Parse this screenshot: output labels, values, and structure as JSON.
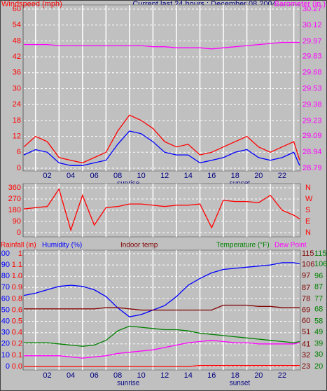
{
  "chart_data": [
    {
      "type": "line",
      "title": "Current last 24 hours : December 08 2004",
      "x": [
        0,
        1,
        2,
        3,
        4,
        5,
        6,
        7,
        8,
        9,
        10,
        11,
        12,
        13,
        14,
        15,
        16,
        17,
        18,
        19,
        20,
        21,
        22,
        23,
        23.5
      ],
      "xlim": [
        0,
        23.5
      ],
      "xticks": [
        {
          "value": 2,
          "label": "02"
        },
        {
          "value": 4,
          "label": "04"
        },
        {
          "value": 6,
          "label": "06"
        },
        {
          "value": 8,
          "label": "08"
        },
        10,
        12,
        14,
        16,
        18,
        20,
        22
      ],
      "xgrid": [
        1,
        3,
        5,
        7,
        9,
        11,
        13,
        15,
        17,
        19,
        21,
        23
      ],
      "annotations": [
        {
          "text": "sunrise",
          "x": 8.9
        },
        {
          "text": "sunset",
          "x": 18.4
        }
      ],
      "grid": true,
      "axes": [
        {
          "label": "Windspeed (mph)",
          "side": "left",
          "color": "#ff0000",
          "lim": [
            0,
            60
          ],
          "ticks": [
            0,
            6,
            12,
            18,
            24,
            30,
            36,
            42,
            48,
            54,
            60
          ]
        },
        {
          "label": "Barometer (in.)",
          "side": "right",
          "color": "#ff00ff",
          "lim": [
            28.79,
            30.27
          ],
          "ticks": [
            28.79,
            28.94,
            29.09,
            29.23,
            29.38,
            29.53,
            29.68,
            29.83,
            29.97,
            30.12,
            30.27
          ]
        }
      ],
      "series": [
        {
          "color": "#ff0000",
          "axis": 0,
          "values": [
            8,
            12,
            10,
            4,
            3,
            2,
            4,
            6,
            14,
            20,
            18,
            15,
            10,
            8,
            9,
            5,
            6,
            8,
            10,
            12,
            8,
            6,
            8,
            10,
            3
          ]
        },
        {
          "color": "#0000ff",
          "axis": 0,
          "values": [
            5,
            7,
            6,
            2,
            1,
            1,
            2,
            3,
            9,
            14,
            13,
            10,
            6,
            5,
            5,
            2,
            3,
            4,
            6,
            7,
            4,
            3,
            4,
            6,
            1
          ]
        },
        {
          "color": "#ff00ff",
          "axis": 1,
          "values": [
            29.94,
            29.94,
            29.94,
            29.93,
            29.93,
            29.93,
            29.93,
            29.93,
            29.93,
            29.93,
            29.93,
            29.92,
            29.92,
            29.91,
            29.91,
            29.91,
            29.9,
            29.91,
            29.92,
            29.93,
            29.94,
            29.95,
            29.96,
            29.96,
            29.96
          ]
        }
      ]
    },
    {
      "type": "line",
      "x": [
        0,
        1,
        2,
        3,
        4,
        5,
        6,
        7,
        8,
        9,
        10,
        11,
        12,
        13,
        14,
        15,
        16,
        17,
        18,
        19,
        20,
        21,
        22,
        23,
        23.5
      ],
      "xlim": [
        0,
        23.5
      ],
      "xgrid": [
        1,
        3,
        5,
        7,
        9,
        11,
        13,
        15,
        17,
        19,
        21,
        23
      ],
      "grid": true,
      "axes": [
        {
          "side": "left",
          "color": "#ff0000",
          "lim": [
            0,
            360
          ],
          "ticks": [
            0,
            90,
            180,
            270,
            360
          ]
        },
        {
          "side": "right",
          "color": "#ff0000",
          "lim": [
            0,
            360
          ],
          "ticks": [
            {
              "value": 360,
              "label": "N"
            },
            {
              "value": 270,
              "label": "W"
            },
            {
              "value": 180,
              "label": "S"
            },
            {
              "value": 90,
              "label": "E"
            },
            {
              "value": 0,
              "label": "N"
            }
          ]
        }
      ],
      "series": [
        {
          "color": "#ff0000",
          "axis": 0,
          "values": [
            190,
            200,
            210,
            350,
            20,
            300,
            60,
            200,
            210,
            230,
            230,
            220,
            210,
            220,
            220,
            230,
            40,
            260,
            250,
            250,
            240,
            300,
            180,
            140,
            110
          ]
        }
      ]
    },
    {
      "type": "line",
      "x": [
        0,
        1,
        2,
        3,
        4,
        5,
        6,
        7,
        8,
        9,
        10,
        11,
        12,
        13,
        14,
        15,
        16,
        17,
        18,
        19,
        20,
        21,
        22,
        23,
        23.5
      ],
      "xlim": [
        0,
        23.5
      ],
      "xticks": [
        {
          "value": 2,
          "label": "02"
        },
        {
          "value": 4,
          "label": "04"
        },
        {
          "value": 6,
          "label": "06"
        },
        {
          "value": 8,
          "label": "08"
        },
        10,
        12,
        14,
        16,
        18,
        20,
        22
      ],
      "xgrid": [
        1,
        3,
        5,
        7,
        9,
        11,
        13,
        15,
        17,
        19,
        21,
        23
      ],
      "annotations": [
        {
          "text": "sunrise",
          "x": 8.9
        },
        {
          "text": "sunset",
          "x": 18.4
        }
      ],
      "grid": true,
      "axes": [
        {
          "side": "left",
          "color": "#0000ff",
          "lim": [
            0,
            100
          ],
          "ticks": [
            0,
            10,
            20,
            30,
            40,
            50,
            60,
            70,
            80,
            90,
            100
          ]
        },
        {
          "side": "left",
          "color": "#ff0000",
          "lim": [
            0,
            1.25
          ],
          "ticks": [
            {
              "value": 0,
              "label": "0.0"
            },
            {
              "value": 0.125,
              "label": "0.1"
            },
            {
              "value": 0.25,
              "label": "0.2"
            },
            {
              "value": 0.375,
              "label": "0.4"
            },
            {
              "value": 0.5,
              "label": "0.5"
            },
            {
              "value": 0.625,
              "label": "0.6"
            },
            {
              "value": 0.75,
              "label": "0.8"
            },
            {
              "value": 0.875,
              "label": "0.9"
            },
            {
              "value": 1,
              "label": "1.0"
            },
            {
              "value": 1.125,
              "label": "1.1"
            },
            {
              "value": 1.25,
              "label": "1"
            }
          ]
        },
        {
          "side": "right",
          "color": "#800000",
          "lim": [
            23,
            115
          ],
          "ticks": [
            23,
            32,
            41,
            51,
            60,
            69,
            78,
            87,
            97,
            106,
            115
          ]
        },
        {
          "side": "right",
          "color": "#008000",
          "lim": [
            20,
            115
          ],
          "ticks": [
            20,
            30,
            39,
            49,
            58,
            68,
            77,
            87,
            96,
            106,
            115
          ]
        }
      ],
      "series": [
        {
          "name": "Rainfall (in)",
          "color": "#ff0000",
          "axis": 1,
          "values": [
            0,
            0,
            0,
            0,
            0,
            0,
            0,
            0,
            0,
            0,
            0,
            0,
            0,
            0,
            0,
            0.01,
            0.01,
            0.01,
            0.01,
            0.01,
            0.01,
            0.01,
            0.01,
            0.01,
            0.01
          ]
        },
        {
          "name": "Humidity (%)",
          "color": "#0000ff",
          "axis": 0,
          "values": [
            63,
            65,
            68,
            71,
            72,
            71,
            68,
            62,
            52,
            44,
            46,
            50,
            54,
            62,
            72,
            78,
            83,
            86,
            87,
            88,
            89,
            90,
            92,
            92,
            91
          ]
        },
        {
          "name": "Indoor temp",
          "color": "#800000",
          "axis": 2,
          "values": [
            70,
            70,
            70,
            70,
            70,
            70,
            70,
            71,
            71,
            70,
            69,
            69,
            69,
            69,
            69,
            69,
            69,
            73,
            73,
            73,
            72,
            72,
            71,
            71,
            71
          ]
        },
        {
          "name": "Temperature (°F)",
          "color": "#008000",
          "axis": 3,
          "values": [
            40,
            40,
            40,
            39,
            38,
            37,
            38,
            42,
            50,
            54,
            53,
            52,
            51,
            51,
            50,
            48,
            47,
            46,
            45,
            44,
            43,
            42,
            41,
            40,
            41
          ]
        },
        {
          "name": "Dew Point",
          "color": "#ff00ff",
          "axis": 3,
          "values": [
            29,
            29,
            29,
            29,
            28,
            27,
            28,
            29,
            31,
            32,
            33,
            34,
            36,
            38,
            40,
            41,
            42,
            41,
            40,
            40,
            39,
            39,
            39,
            39,
            40
          ]
        }
      ]
    }
  ]
}
